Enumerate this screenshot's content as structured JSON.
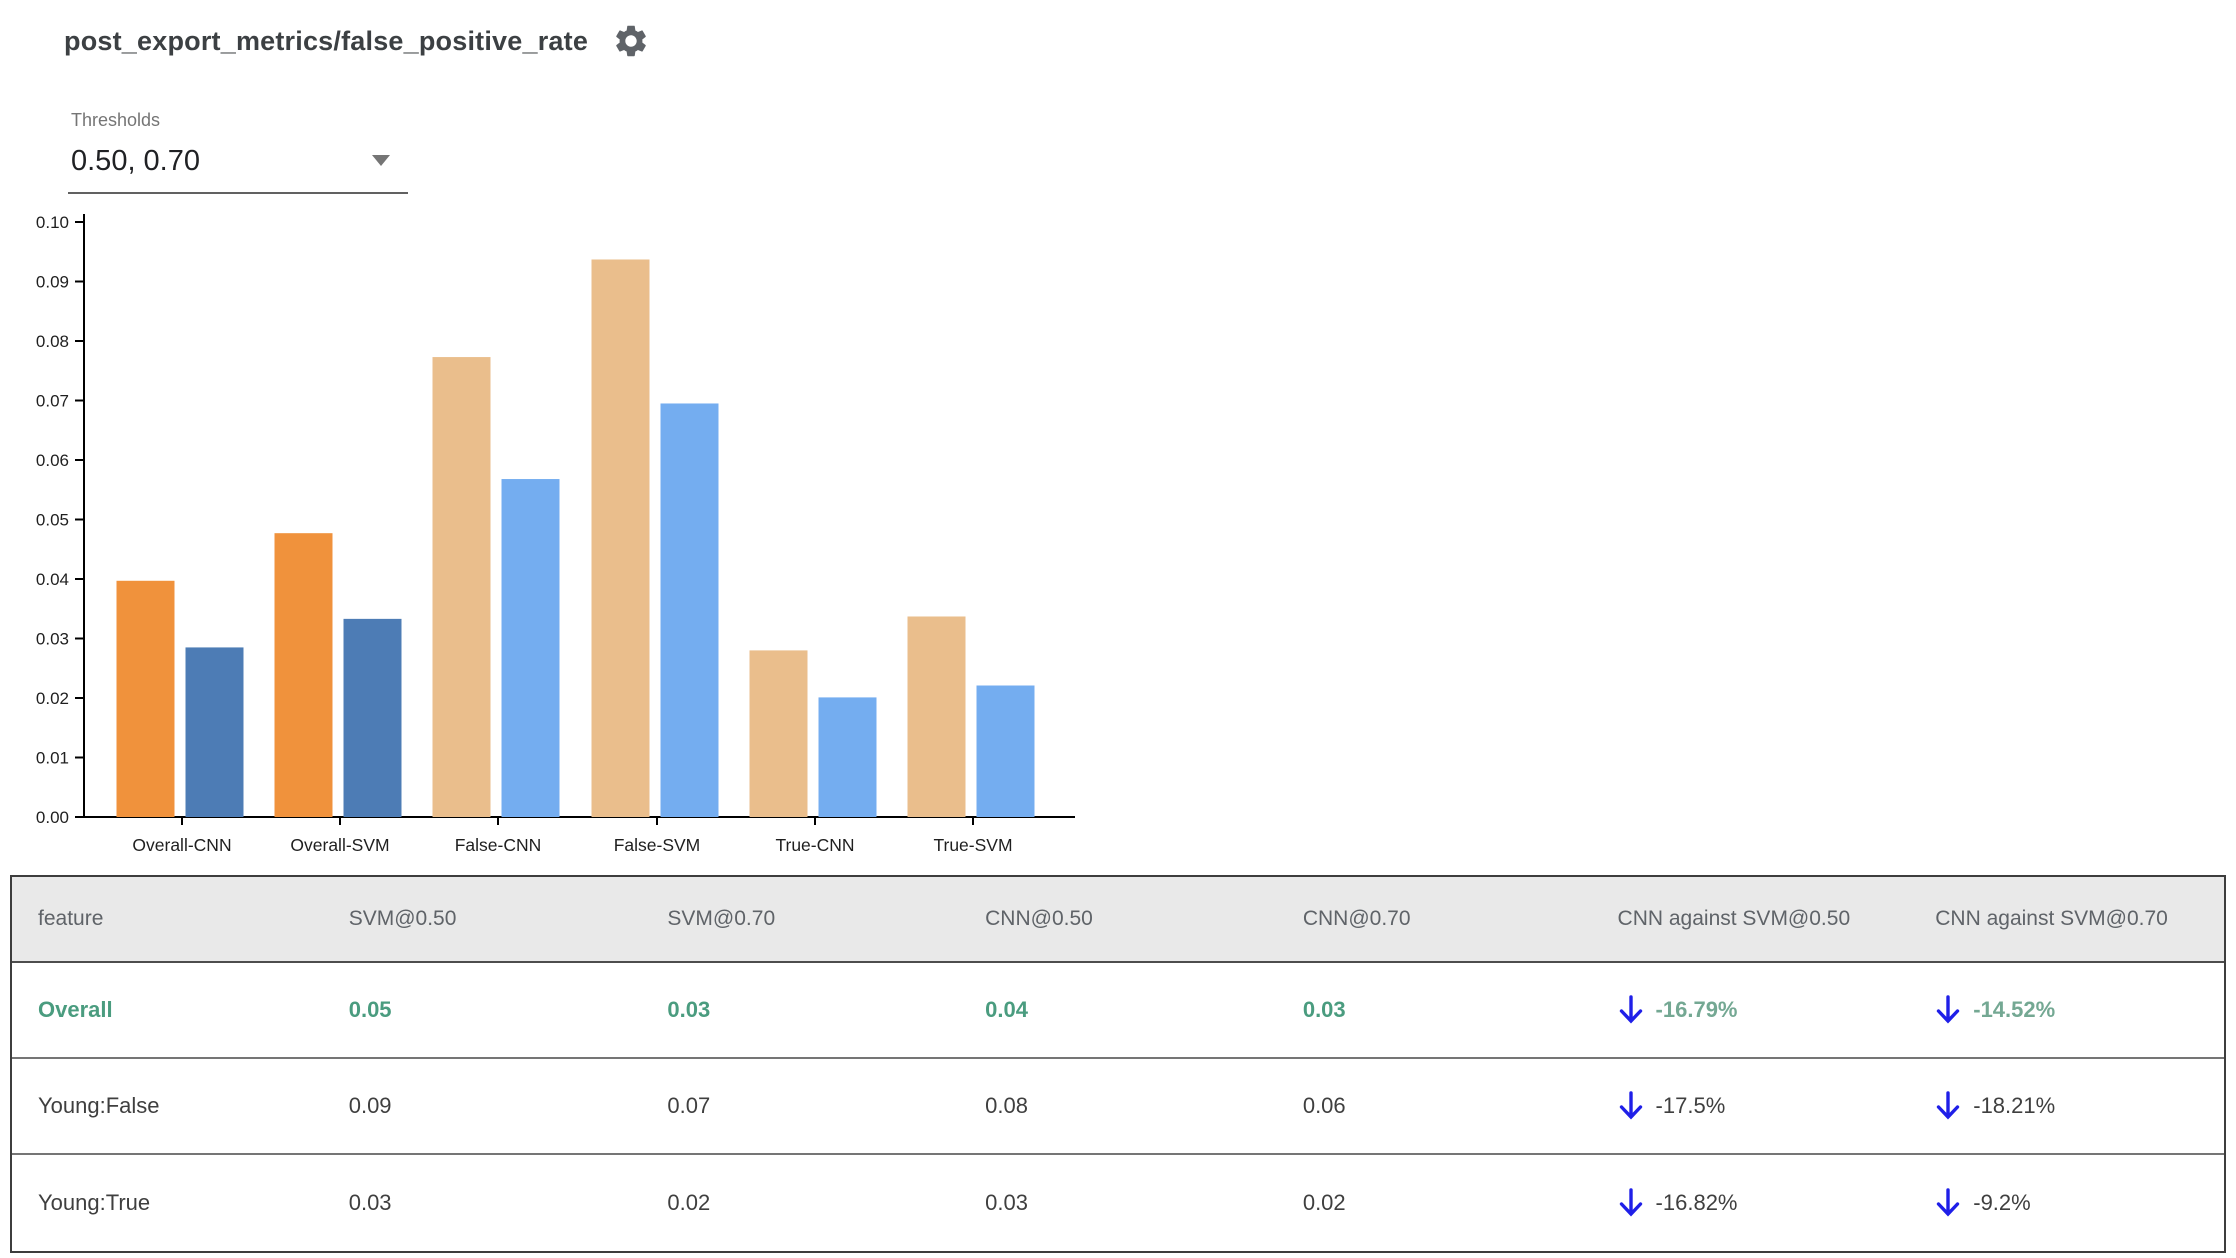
{
  "header": {
    "title": "post_export_metrics/false_positive_rate"
  },
  "controls": {
    "thresholds_label": "Thresholds",
    "thresholds_value": "0.50, 0.70"
  },
  "chart_data": {
    "type": "bar",
    "title": "",
    "xlabel": "",
    "ylabel": "",
    "categories": [
      "Overall-CNN",
      "Overall-SVM",
      "False-CNN",
      "False-SVM",
      "True-CNN",
      "True-SVM"
    ],
    "series": [
      {
        "name": "threshold 0.50",
        "values": [
          0.0397,
          0.0477,
          0.0773,
          0.0937,
          0.028,
          0.0337
        ]
      },
      {
        "name": "threshold 0.70",
        "values": [
          0.0285,
          0.0333,
          0.0568,
          0.0695,
          0.0201,
          0.0221
        ]
      }
    ],
    "ylim": [
      0,
      0.1
    ],
    "ytick_step": 0.01,
    "grid": false,
    "legend": "none",
    "colors": {
      "overall_pair": [
        "#f0923c",
        "#4d7cb5"
      ],
      "slice_pair": [
        "#eabe8c",
        "#74adf0"
      ],
      "axis": "#000000",
      "tick_text": "#1f1f1f"
    }
  },
  "table": {
    "columns": [
      "feature",
      "SVM@0.50",
      "SVM@0.70",
      "CNN@0.50",
      "CNN@0.70",
      "CNN against SVM@0.50",
      "CNN against SVM@0.70"
    ],
    "rows": [
      {
        "feature": "Overall",
        "values": [
          "0.05",
          "0.03",
          "0.04",
          "0.03"
        ],
        "diffs": [
          "-16.79%",
          "-14.52%"
        ],
        "highlight": true
      },
      {
        "feature": "Young:False",
        "values": [
          "0.09",
          "0.07",
          "0.08",
          "0.06"
        ],
        "diffs": [
          "-17.5%",
          "-18.21%"
        ],
        "highlight": false
      },
      {
        "feature": "Young:True",
        "values": [
          "0.03",
          "0.02",
          "0.03",
          "0.02"
        ],
        "diffs": [
          "-16.82%",
          "-9.2%"
        ],
        "highlight": false
      }
    ],
    "colors": {
      "highlight_text": "#4a9c7f",
      "diff_highlight_text": "#74a893",
      "arrow": "#1f1fe8",
      "header_bg": "#e9e9e9"
    }
  }
}
